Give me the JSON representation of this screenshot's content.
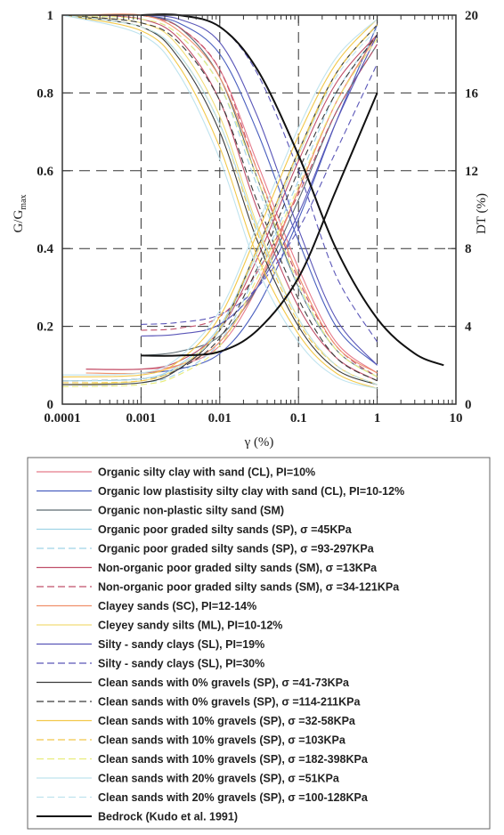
{
  "chart_data": {
    "type": "line",
    "xlabel": "γ (%)",
    "ylabel_left": "G/G",
    "ylabel_left_sub": "max",
    "ylabel_right": "DT (%)",
    "x_scale": "log",
    "xlim": [
      0.0001,
      10
    ],
    "ylim_left": [
      0,
      1
    ],
    "ylim_right": [
      0,
      20
    ],
    "grid": "dashed",
    "legend_position": "below",
    "x_tick_labels": [
      "0.0001",
      "0.001",
      "0.01",
      "0.1",
      "1",
      "10"
    ],
    "y_left_tick_labels": [
      "0",
      "0.2",
      "0.4",
      "0.6",
      "0.8",
      "1"
    ],
    "y_right_tick_labels": [
      "0",
      "4",
      "8",
      "12",
      "16",
      "20"
    ],
    "series": [
      {
        "name": "Organic silty clay with sand (CL), PI=10%",
        "color": "#e57a8a",
        "dash": "solid",
        "modulus": {
          "x": [
            0.0002,
            0.001,
            0.003,
            0.01,
            0.03,
            0.1,
            0.3,
            1
          ],
          "y": [
            1.0,
            1.0,
            0.97,
            0.86,
            0.62,
            0.35,
            0.16,
            0.08
          ]
        },
        "damping": {
          "x": [
            0.0002,
            0.001,
            0.003,
            0.01,
            0.03,
            0.1,
            0.3,
            1
          ],
          "y": [
            1.8,
            1.8,
            2.0,
            3.0,
            6.0,
            11.0,
            15.5,
            19.0
          ]
        }
      },
      {
        "name": "Organic low plastisity silty clay with sand (CL), PI=10-12%",
        "color": "#4a5fbf",
        "dash": "solid",
        "modulus": {
          "x": [
            0.001,
            0.003,
            0.01,
            0.03,
            0.1,
            0.3,
            1
          ],
          "y": [
            1.0,
            0.98,
            0.9,
            0.7,
            0.42,
            0.2,
            0.1
          ]
        },
        "damping": {
          "x": [
            0.001,
            0.003,
            0.01,
            0.03,
            0.1,
            0.3,
            1
          ],
          "y": [
            1.6,
            1.8,
            2.6,
            5.0,
            9.5,
            14.5,
            19.5
          ]
        }
      },
      {
        "name": "Organic non-plastic silty sand (SM)",
        "color": "#5c6a70",
        "dash": "solid",
        "modulus": {
          "x": [
            0.001,
            0.003,
            0.01,
            0.03,
            0.1,
            0.3,
            1
          ],
          "y": [
            1.0,
            0.97,
            0.84,
            0.58,
            0.3,
            0.14,
            0.07
          ]
        },
        "damping": {
          "x": [
            0.001,
            0.003,
            0.01,
            0.03,
            0.1,
            0.3,
            1
          ],
          "y": [
            2.5,
            2.7,
            3.5,
            6.0,
            10.5,
            15.0,
            18.5
          ]
        }
      },
      {
        "name": "Organic poor graded silty sands (SP), σ =45KPa",
        "color": "#9fd3e6",
        "dash": "solid",
        "modulus": {
          "x": [
            0.0001,
            0.001,
            0.003,
            0.01,
            0.03,
            0.1,
            0.3,
            1
          ],
          "y": [
            1.0,
            0.97,
            0.9,
            0.72,
            0.45,
            0.22,
            0.1,
            0.05
          ]
        },
        "damping": {
          "x": [
            0.0001,
            0.001,
            0.003,
            0.01,
            0.03,
            0.1,
            0.3,
            1
          ],
          "y": [
            1.2,
            1.3,
            2.0,
            4.0,
            8.0,
            13.0,
            17.0,
            19.5
          ]
        }
      },
      {
        "name": "Organic poor graded silty sands (SP), σ =93-297KPa",
        "color": "#9fd3e6",
        "dash": "dashed",
        "modulus": {
          "x": [
            0.0001,
            0.001,
            0.003,
            0.01,
            0.03,
            0.1,
            0.3,
            1
          ],
          "y": [
            1.0,
            0.99,
            0.95,
            0.82,
            0.56,
            0.3,
            0.14,
            0.07
          ]
        },
        "damping": {
          "x": [
            0.0001,
            0.001,
            0.003,
            0.01,
            0.03,
            0.1,
            0.3,
            1
          ],
          "y": [
            1.0,
            1.1,
            1.6,
            3.2,
            6.8,
            11.5,
            16.0,
            19.0
          ]
        }
      },
      {
        "name": "Non-organic poor graded silty sands (SM), σ =13KPa",
        "color": "#c0506a",
        "dash": "solid",
        "modulus": {
          "x": [
            0.0002,
            0.001,
            0.003,
            0.01,
            0.03,
            0.1,
            0.3,
            1
          ],
          "y": [
            1.0,
            0.99,
            0.94,
            0.78,
            0.5,
            0.25,
            0.12,
            0.06
          ]
        },
        "damping": {
          "x": [
            0.0002,
            0.001,
            0.003,
            0.01,
            0.03,
            0.1,
            0.3,
            1
          ],
          "y": [
            1.8,
            1.8,
            2.2,
            3.8,
            7.5,
            12.5,
            16.5,
            19.0
          ]
        }
      },
      {
        "name": "Non-organic poor graded silty sands (SM), σ =34-121KPa",
        "color": "#c0506a",
        "dash": "dashed",
        "modulus": {
          "x": [
            0.001,
            0.003,
            0.01,
            0.03,
            0.1,
            0.3,
            1
          ],
          "y": [
            1.0,
            0.97,
            0.86,
            0.6,
            0.32,
            0.15,
            0.07
          ]
        },
        "damping": {
          "x": [
            0.001,
            0.003,
            0.01,
            0.03,
            0.1,
            0.3,
            1
          ],
          "y": [
            3.8,
            3.9,
            4.5,
            6.8,
            10.8,
            15.0,
            18.5
          ]
        }
      },
      {
        "name": "Clayey sands (SC), PI=12-14%",
        "color": "#f0906a",
        "dash": "solid",
        "modulus": {
          "x": [
            0.0002,
            0.001,
            0.003,
            0.01,
            0.03,
            0.1,
            0.3,
            1
          ],
          "y": [
            1.0,
            1.0,
            0.96,
            0.84,
            0.6,
            0.33,
            0.15,
            0.08
          ]
        },
        "damping": {
          "x": [
            0.0002,
            0.001,
            0.003,
            0.01,
            0.03,
            0.1,
            0.3,
            1
          ],
          "y": [
            1.6,
            1.6,
            2.0,
            3.2,
            6.2,
            11.0,
            15.5,
            19.0
          ]
        }
      },
      {
        "name": "Cleyey sandy silts (ML), PI=10-12%",
        "color": "#f2dc78",
        "dash": "solid",
        "modulus": {
          "x": [
            0.0001,
            0.001,
            0.003,
            0.01,
            0.03,
            0.1,
            0.3,
            1
          ],
          "y": [
            1.0,
            0.98,
            0.92,
            0.74,
            0.46,
            0.22,
            0.1,
            0.05
          ]
        },
        "damping": {
          "x": [
            0.0001,
            0.001,
            0.003,
            0.01,
            0.03,
            0.1,
            0.3,
            1
          ],
          "y": [
            1.0,
            1.2,
            1.9,
            3.8,
            7.8,
            12.8,
            17.0,
            19.5
          ]
        }
      },
      {
        "name": "Silty - sandy clays (SL), PI=19%",
        "color": "#5a56b8",
        "dash": "solid",
        "modulus": {
          "x": [
            0.001,
            0.003,
            0.01,
            0.03,
            0.1,
            0.3,
            1
          ],
          "y": [
            1.0,
            0.99,
            0.93,
            0.74,
            0.45,
            0.22,
            0.1
          ]
        },
        "damping": {
          "x": [
            0.001,
            0.003,
            0.01,
            0.03,
            0.1,
            0.3,
            1
          ],
          "y": [
            3.5,
            3.6,
            4.1,
            6.0,
            9.8,
            14.5,
            19.0
          ]
        }
      },
      {
        "name": "Silty - sandy clays (SL), PI=30%",
        "color": "#5a56b8",
        "dash": "dashed",
        "modulus": {
          "x": [
            0.001,
            0.003,
            0.01,
            0.03,
            0.1,
            0.3,
            1
          ],
          "y": [
            1.0,
            1.0,
            0.97,
            0.85,
            0.6,
            0.33,
            0.16
          ]
        },
        "damping": {
          "x": [
            0.001,
            0.003,
            0.01,
            0.03,
            0.1,
            0.3,
            1
          ],
          "y": [
            4.1,
            4.2,
            4.6,
            6.0,
            9.0,
            13.0,
            17.5
          ]
        }
      },
      {
        "name": "Clean sands with 0% gravels (SP), σ =41-73KPa",
        "color": "#3a3a3a",
        "dash": "solid",
        "modulus": {
          "x": [
            0.0001,
            0.001,
            0.003,
            0.01,
            0.03,
            0.1,
            0.3,
            1
          ],
          "y": [
            1.0,
            0.97,
            0.89,
            0.7,
            0.42,
            0.2,
            0.09,
            0.05
          ]
        },
        "damping": {
          "x": [
            0.0001,
            0.001,
            0.003,
            0.01,
            0.03,
            0.1,
            0.3,
            1
          ],
          "y": [
            1.0,
            1.1,
            1.8,
            3.8,
            8.0,
            13.0,
            17.0,
            19.5
          ]
        }
      },
      {
        "name": "Clean sands with 0% gravels (SP), σ =114-211KPa",
        "color": "#3a3a3a",
        "dash": "dashed",
        "modulus": {
          "x": [
            0.0001,
            0.001,
            0.003,
            0.01,
            0.03,
            0.1,
            0.3,
            1
          ],
          "y": [
            1.0,
            0.98,
            0.93,
            0.78,
            0.52,
            0.27,
            0.12,
            0.06
          ]
        },
        "damping": {
          "x": [
            0.0001,
            0.001,
            0.003,
            0.01,
            0.03,
            0.1,
            0.3,
            1
          ],
          "y": [
            1.2,
            1.3,
            1.8,
            3.4,
            7.0,
            12.0,
            16.0,
            19.0
          ]
        }
      },
      {
        "name": "Clean sands with 10% gravels (SP), σ =32-58KPa",
        "color": "#f2c84a",
        "dash": "solid",
        "modulus": {
          "x": [
            0.0001,
            0.001,
            0.003,
            0.01,
            0.03,
            0.1,
            0.3,
            1
          ],
          "y": [
            1.0,
            0.96,
            0.87,
            0.66,
            0.38,
            0.18,
            0.08,
            0.04
          ]
        },
        "damping": {
          "x": [
            0.0001,
            0.001,
            0.003,
            0.01,
            0.03,
            0.1,
            0.3,
            1
          ],
          "y": [
            1.4,
            1.5,
            2.2,
            4.5,
            8.8,
            13.8,
            17.5,
            19.8
          ]
        }
      },
      {
        "name": "Clean sands with 10% gravels (SP), σ =103KPa",
        "color": "#f2c84a",
        "dash": "dashed",
        "modulus": {
          "x": [
            0.0001,
            0.001,
            0.003,
            0.01,
            0.03,
            0.1,
            0.3,
            1
          ],
          "y": [
            1.0,
            0.97,
            0.9,
            0.72,
            0.44,
            0.21,
            0.1,
            0.05
          ]
        },
        "damping": {
          "x": [
            0.0001,
            0.001,
            0.003,
            0.01,
            0.03,
            0.1,
            0.3,
            1
          ],
          "y": [
            1.1,
            1.2,
            1.9,
            3.9,
            8.0,
            13.0,
            17.0,
            19.5
          ]
        }
      },
      {
        "name": "Clean sands with 10% gravels (SP), σ =182-398KPa",
        "color": "#e8ec7a",
        "dash": "dashed",
        "modulus": {
          "x": [
            0.0001,
            0.001,
            0.003,
            0.01,
            0.03,
            0.1,
            0.3,
            1
          ],
          "y": [
            1.0,
            0.99,
            0.95,
            0.82,
            0.58,
            0.31,
            0.14,
            0.07
          ]
        },
        "damping": {
          "x": [
            0.0001,
            0.001,
            0.003,
            0.01,
            0.03,
            0.1,
            0.3,
            1
          ],
          "y": [
            0.9,
            1.0,
            1.5,
            3.0,
            6.5,
            11.2,
            15.5,
            18.8
          ]
        }
      },
      {
        "name": "Clean sands with 20% gravels (SP), σ =51KPa",
        "color": "#bfe3ee",
        "dash": "solid",
        "modulus": {
          "x": [
            0.0001,
            0.001,
            0.003,
            0.01,
            0.03,
            0.1,
            0.3,
            1
          ],
          "y": [
            1.0,
            0.95,
            0.85,
            0.63,
            0.35,
            0.16,
            0.07,
            0.04
          ]
        },
        "damping": {
          "x": [
            0.0001,
            0.001,
            0.003,
            0.01,
            0.03,
            0.1,
            0.3,
            1
          ],
          "y": [
            1.5,
            1.6,
            2.4,
            4.8,
            9.2,
            14.2,
            17.8,
            19.8
          ]
        }
      },
      {
        "name": "Clean sands with 20% gravels (SP), σ =100-128KPa",
        "color": "#bfe3ee",
        "dash": "dashed",
        "modulus": {
          "x": [
            0.0001,
            0.001,
            0.003,
            0.01,
            0.03,
            0.1,
            0.3,
            1
          ],
          "y": [
            1.0,
            0.97,
            0.9,
            0.72,
            0.45,
            0.22,
            0.1,
            0.05
          ]
        },
        "damping": {
          "x": [
            0.0001,
            0.001,
            0.003,
            0.01,
            0.03,
            0.1,
            0.3,
            1
          ],
          "y": [
            1.2,
            1.3,
            1.9,
            3.8,
            7.8,
            12.8,
            16.8,
            19.3
          ]
        }
      },
      {
        "name": "Bedrock (Kudo et al. 1991)",
        "color": "#111111",
        "dash": "solid",
        "bold": true,
        "modulus": {
          "x": [
            0.001,
            0.003,
            0.01,
            0.03,
            0.1,
            0.3,
            1,
            3,
            7
          ],
          "y": [
            1.0,
            1.0,
            0.97,
            0.86,
            0.64,
            0.4,
            0.22,
            0.13,
            0.1
          ]
        },
        "damping": {
          "x": [
            0.001,
            0.003,
            0.01,
            0.03,
            0.1,
            0.3,
            1
          ],
          "y": [
            2.5,
            2.5,
            2.7,
            3.8,
            6.5,
            11.0,
            16.0
          ]
        }
      }
    ]
  }
}
